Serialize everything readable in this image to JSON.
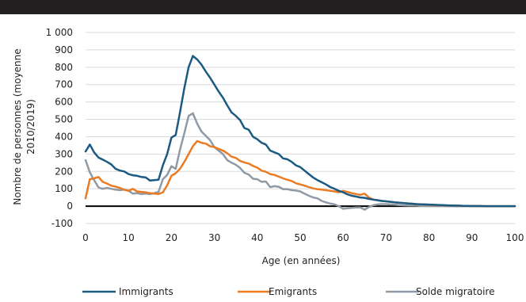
{
  "chart_data": {
    "type": "line",
    "title": "",
    "xlabel": "Age (en années)",
    "ylabel": "Nombre de personnes (moyenne 2010/2019)",
    "xlim": [
      0,
      100
    ],
    "ylim": [
      -100,
      1000
    ],
    "x_ticks": [
      0,
      10,
      20,
      30,
      40,
      50,
      60,
      70,
      80,
      90,
      100
    ],
    "x_tick_labels": [
      "0",
      "10",
      "20",
      "30",
      "40",
      "50",
      "60",
      "70",
      "80",
      "90",
      "100"
    ],
    "y_ticks": [
      -100,
      0,
      100,
      200,
      300,
      400,
      500,
      600,
      700,
      800,
      900,
      1000
    ],
    "y_tick_labels": [
      "-100",
      "0",
      "100",
      "200",
      "300",
      "400",
      "500",
      "600",
      "700",
      "800",
      "900",
      "1 000"
    ],
    "grid": true,
    "legend_position": "bottom",
    "series": [
      {
        "name": "Immigrants",
        "color": "#1a5a83",
        "x": [
          0,
          1,
          2,
          3,
          4,
          5,
          6,
          7,
          8,
          9,
          10,
          11,
          12,
          13,
          14,
          15,
          16,
          17,
          18,
          19,
          20,
          21,
          22,
          23,
          24,
          25,
          26,
          27,
          28,
          29,
          30,
          31,
          32,
          33,
          34,
          35,
          36,
          37,
          38,
          39,
          40,
          41,
          42,
          43,
          44,
          45,
          46,
          47,
          48,
          49,
          50,
          51,
          52,
          53,
          54,
          55,
          56,
          57,
          58,
          59,
          60,
          61,
          62,
          63,
          64,
          65,
          66,
          67,
          68,
          69,
          70,
          71,
          72,
          73,
          74,
          75,
          76,
          77,
          78,
          79,
          80,
          81,
          82,
          83,
          84,
          85,
          86,
          87,
          88,
          89,
          90,
          91,
          92,
          93,
          94,
          95,
          96,
          97,
          98,
          99,
          100
        ],
        "values": [
          315,
          355,
          310,
          280,
          268,
          255,
          240,
          215,
          205,
          200,
          185,
          178,
          175,
          168,
          165,
          148,
          150,
          152,
          235,
          300,
          395,
          410,
          540,
          680,
          800,
          865,
          845,
          815,
          775,
          740,
          700,
          660,
          625,
          580,
          540,
          520,
          495,
          450,
          440,
          400,
          385,
          365,
          355,
          320,
          310,
          300,
          275,
          270,
          255,
          235,
          225,
          205,
          185,
          165,
          150,
          138,
          125,
          110,
          100,
          88,
          80,
          68,
          60,
          55,
          50,
          48,
          42,
          38,
          34,
          30,
          28,
          25,
          22,
          20,
          18,
          16,
          14,
          12,
          11,
          10,
          9,
          8,
          7,
          6,
          5,
          4,
          3,
          3,
          2,
          2,
          1,
          1,
          1,
          0,
          0,
          0,
          0,
          0,
          0,
          0,
          0
        ]
      },
      {
        "name": "Emigrants",
        "color": "#ea7b23",
        "x": [
          0,
          1,
          2,
          3,
          4,
          5,
          6,
          7,
          8,
          9,
          10,
          11,
          12,
          13,
          14,
          15,
          16,
          17,
          18,
          19,
          20,
          21,
          22,
          23,
          24,
          25,
          26,
          27,
          28,
          29,
          30,
          31,
          32,
          33,
          34,
          35,
          36,
          37,
          38,
          39,
          40,
          41,
          42,
          43,
          44,
          45,
          46,
          47,
          48,
          49,
          50,
          51,
          52,
          53,
          54,
          55,
          56,
          57,
          58,
          59,
          60,
          61,
          62,
          63,
          64,
          65,
          66,
          67,
          68,
          69,
          70,
          71,
          72,
          73,
          74,
          75,
          76,
          77,
          78,
          79,
          80,
          81,
          82,
          83,
          84,
          85,
          86,
          87,
          88,
          89,
          90,
          91,
          92,
          93,
          94,
          95,
          96,
          97,
          98,
          99,
          100
        ],
        "values": [
          45,
          155,
          160,
          168,
          140,
          130,
          118,
          112,
          105,
          95,
          88,
          100,
          85,
          82,
          80,
          75,
          72,
          70,
          80,
          120,
          175,
          190,
          215,
          255,
          300,
          345,
          375,
          365,
          360,
          345,
          340,
          330,
          320,
          305,
          285,
          278,
          260,
          252,
          245,
          232,
          222,
          205,
          198,
          185,
          180,
          170,
          160,
          152,
          145,
          132,
          125,
          118,
          110,
          102,
          98,
          95,
          92,
          88,
          85,
          80,
          88,
          82,
          75,
          70,
          65,
          72,
          50,
          38,
          34,
          30,
          28,
          25,
          22,
          20,
          18,
          16,
          14,
          12,
          10,
          9,
          8,
          7,
          6,
          5,
          4,
          3,
          3,
          2,
          2,
          1,
          1,
          1,
          0,
          0,
          0,
          0,
          0,
          0,
          0,
          0,
          0
        ]
      },
      {
        "name": "Solde migratoire",
        "color": "#8f9aa5",
        "x": [
          0,
          1,
          2,
          3,
          4,
          5,
          6,
          7,
          8,
          9,
          10,
          11,
          12,
          13,
          14,
          15,
          16,
          17,
          18,
          19,
          20,
          21,
          22,
          23,
          24,
          25,
          26,
          27,
          28,
          29,
          30,
          31,
          32,
          33,
          34,
          35,
          36,
          37,
          38,
          39,
          40,
          41,
          42,
          43,
          44,
          45,
          46,
          47,
          48,
          49,
          50,
          51,
          52,
          53,
          54,
          55,
          56,
          57,
          58,
          59,
          60,
          61,
          62,
          63,
          64,
          65,
          66,
          67,
          68,
          69,
          70,
          71,
          72,
          73,
          74,
          75,
          76,
          77,
          78,
          79,
          80,
          81,
          82,
          83,
          84,
          85,
          86,
          87,
          88,
          89,
          90,
          91,
          92,
          93,
          94,
          95,
          96,
          97,
          98,
          99,
          100
        ],
        "values": [
          265,
          195,
          150,
          108,
          100,
          105,
          100,
          95,
          92,
          95,
          90,
          72,
          75,
          70,
          72,
          70,
          75,
          82,
          155,
          180,
          230,
          215,
          325,
          420,
          520,
          535,
          475,
          430,
          405,
          380,
          340,
          320,
          300,
          265,
          250,
          238,
          220,
          192,
          182,
          158,
          155,
          140,
          142,
          110,
          115,
          112,
          98,
          98,
          92,
          90,
          85,
          72,
          60,
          50,
          45,
          30,
          22,
          15,
          10,
          0,
          -15,
          -12,
          -10,
          -8,
          -8,
          -20,
          -5,
          5,
          10,
          12,
          12,
          10,
          8,
          6,
          5,
          4,
          3,
          3,
          2,
          2,
          1,
          1,
          1,
          1,
          0,
          0,
          0,
          0,
          0,
          0,
          0,
          0,
          0,
          0,
          0,
          0,
          0,
          0,
          0,
          0,
          0
        ]
      }
    ]
  }
}
